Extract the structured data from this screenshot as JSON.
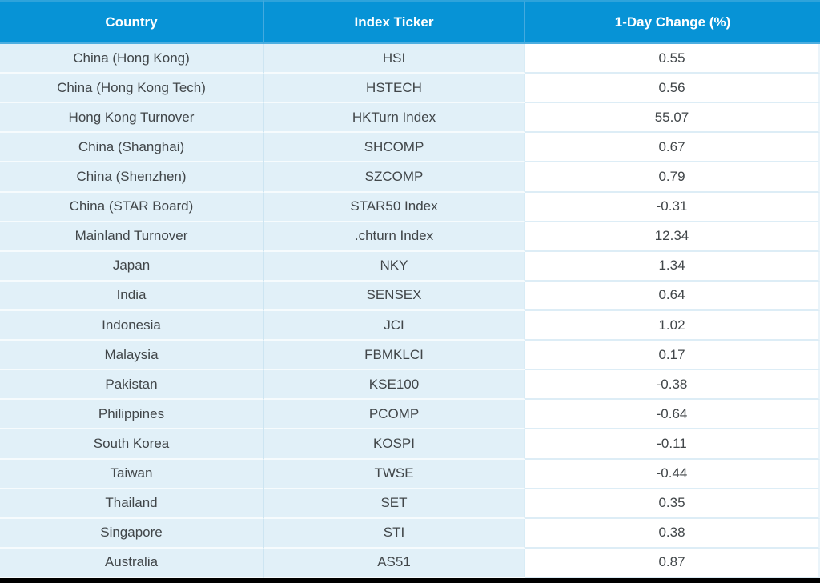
{
  "table": {
    "header": {
      "country": "Country",
      "ticker": "Index Ticker",
      "change": "1-Day Change (%)"
    },
    "rows": [
      {
        "country": "China (Hong Kong)",
        "ticker": "HSI",
        "change": "0.55"
      },
      {
        "country": "China (Hong Kong Tech)",
        "ticker": "HSTECH",
        "change": "0.56"
      },
      {
        "country": "Hong Kong Turnover",
        "ticker": "HKTurn Index",
        "change": "55.07"
      },
      {
        "country": "China (Shanghai)",
        "ticker": "SHCOMP",
        "change": "0.67"
      },
      {
        "country": "China (Shenzhen)",
        "ticker": "SZCOMP",
        "change": "0.79"
      },
      {
        "country": "China (STAR Board)",
        "ticker": "STAR50 Index",
        "change": "-0.31"
      },
      {
        "country": "Mainland Turnover",
        "ticker": ".chturn Index",
        "change": "12.34"
      },
      {
        "country": "Japan",
        "ticker": "NKY",
        "change": "1.34"
      },
      {
        "country": "India",
        "ticker": "SENSEX",
        "change": "0.64"
      },
      {
        "country": "Indonesia",
        "ticker": "JCI",
        "change": "1.02"
      },
      {
        "country": "Malaysia",
        "ticker": "FBMKLCI",
        "change": "0.17"
      },
      {
        "country": "Pakistan",
        "ticker": "KSE100",
        "change": "-0.38"
      },
      {
        "country": "Philippines",
        "ticker": "PCOMP",
        "change": "-0.64"
      },
      {
        "country": "South Korea",
        "ticker": "KOSPI",
        "change": "-0.11"
      },
      {
        "country": "Taiwan",
        "ticker": "TWSE",
        "change": "-0.44"
      },
      {
        "country": "Thailand",
        "ticker": "SET",
        "change": "0.35"
      },
      {
        "country": "Singapore",
        "ticker": "STI",
        "change": "0.38"
      },
      {
        "country": "Australia",
        "ticker": "AS51",
        "change": "0.87"
      }
    ],
    "colors": {
      "header_bg": "#0793d6",
      "header_text": "#ffffff",
      "row_bg_blue": "#e1f0f8",
      "row_bg_white": "#ffffff",
      "body_text": "#414649",
      "grid_on_blue": "#f6fbfd",
      "grid_on_white": "#ddedf6",
      "header_divider": "#43aadf",
      "column_divider": "#cde5f2",
      "bottom_bar": "#000000"
    }
  },
  "chart_data": {
    "type": "table",
    "title": "",
    "columns": [
      "Country",
      "Index Ticker",
      "1-Day Change (%)"
    ],
    "rows": [
      [
        "China (Hong Kong)",
        "HSI",
        0.55
      ],
      [
        "China (Hong Kong Tech)",
        "HSTECH",
        0.56
      ],
      [
        "Hong Kong Turnover",
        "HKTurn Index",
        55.07
      ],
      [
        "China (Shanghai)",
        "SHCOMP",
        0.67
      ],
      [
        "China (Shenzhen)",
        "SZCOMP",
        0.79
      ],
      [
        "China (STAR Board)",
        "STAR50 Index",
        -0.31
      ],
      [
        "Mainland Turnover",
        ".chturn Index",
        12.34
      ],
      [
        "Japan",
        "NKY",
        1.34
      ],
      [
        "India",
        "SENSEX",
        0.64
      ],
      [
        "Indonesia",
        "JCI",
        1.02
      ],
      [
        "Malaysia",
        "FBMKLCI",
        0.17
      ],
      [
        "Pakistan",
        "KSE100",
        -0.38
      ],
      [
        "Philippines",
        "PCOMP",
        -0.64
      ],
      [
        "South Korea",
        "KOSPI",
        -0.11
      ],
      [
        "Taiwan",
        "TWSE",
        -0.44
      ],
      [
        "Thailand",
        "SET",
        0.35
      ],
      [
        "Singapore",
        "STI",
        0.38
      ],
      [
        "Australia",
        "AS51",
        0.87
      ]
    ]
  }
}
